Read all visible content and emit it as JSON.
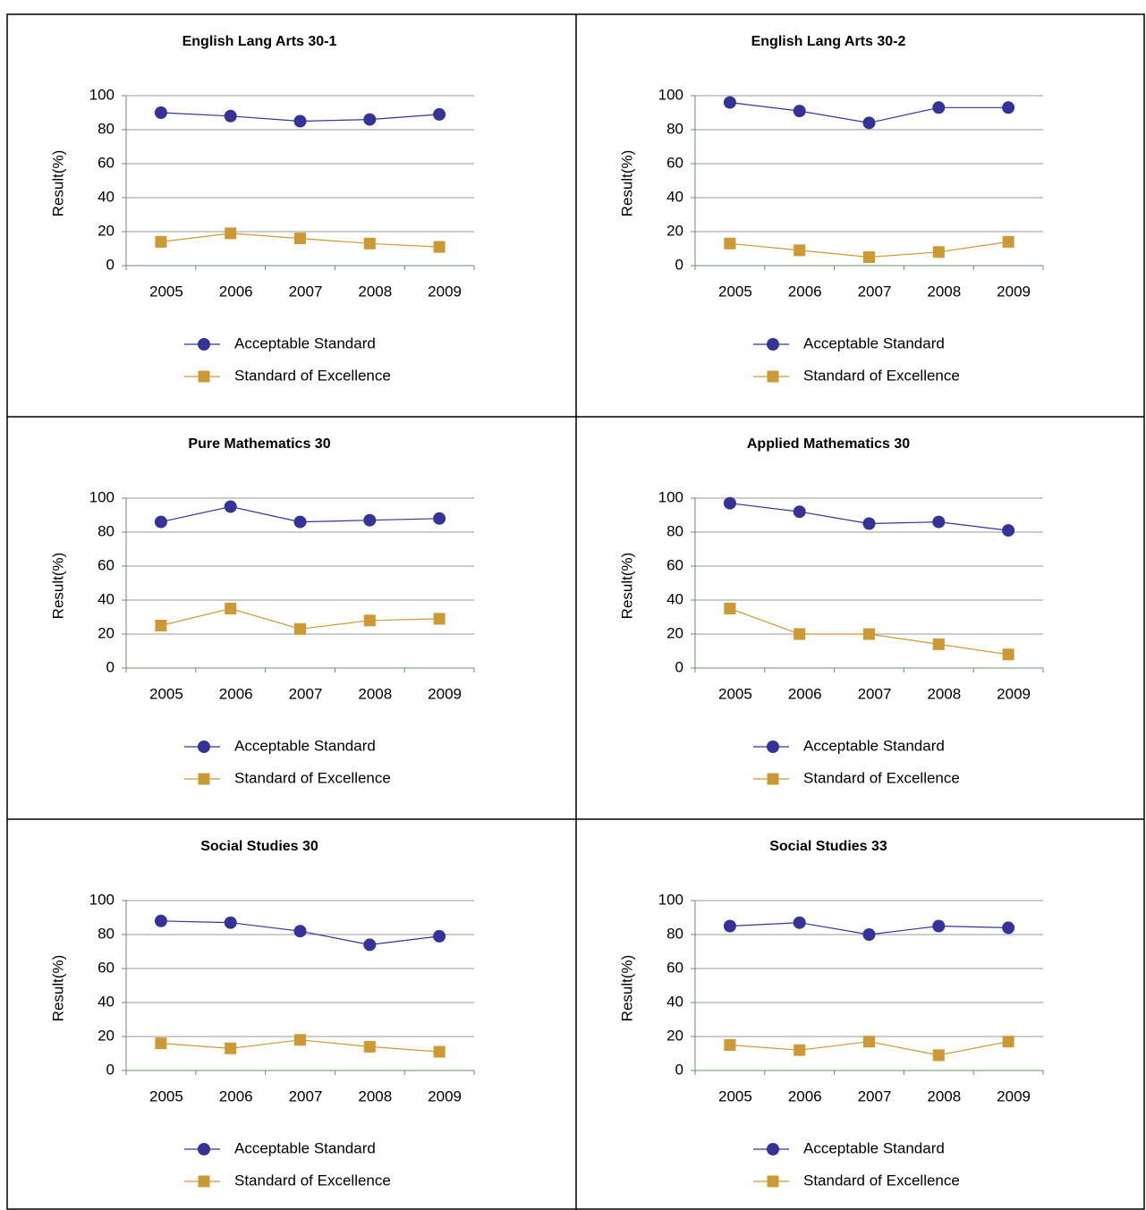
{
  "chart_data": [
    {
      "type": "line",
      "title": "English Lang Arts 30-1",
      "y_label": "Result(%)",
      "categories": [
        "2005",
        "2006",
        "2007",
        "2008",
        "2009"
      ],
      "series": [
        {
          "name": "Acceptable Standard",
          "color": "#333399",
          "marker": "circle",
          "values": [
            90,
            88,
            85,
            86,
            89
          ]
        },
        {
          "name": "Standard of Excellence",
          "color": "#cc9933",
          "marker": "square",
          "values": [
            14,
            19,
            16,
            13,
            11
          ]
        }
      ],
      "ylim": [
        0,
        100
      ],
      "yticks": [
        0,
        20,
        40,
        60,
        80,
        100
      ],
      "grid": true
    },
    {
      "type": "line",
      "title": "English Lang Arts 30-2",
      "y_label": "Result(%)",
      "categories": [
        "2005",
        "2006",
        "2007",
        "2008",
        "2009"
      ],
      "series": [
        {
          "name": "Acceptable Standard",
          "color": "#333399",
          "marker": "circle",
          "values": [
            96,
            91,
            84,
            93,
            93
          ]
        },
        {
          "name": "Standard of Excellence",
          "color": "#cc9933",
          "marker": "square",
          "values": [
            13,
            9,
            5,
            8,
            14
          ]
        }
      ],
      "ylim": [
        0,
        100
      ],
      "yticks": [
        0,
        20,
        40,
        60,
        80,
        100
      ],
      "grid": true
    },
    {
      "type": "line",
      "title": "Pure Mathematics 30",
      "y_label": "Result(%)",
      "categories": [
        "2005",
        "2006",
        "2007",
        "2008",
        "2009"
      ],
      "series": [
        {
          "name": "Acceptable Standard",
          "color": "#333399",
          "marker": "circle",
          "values": [
            86,
            95,
            86,
            87,
            88
          ]
        },
        {
          "name": "Standard of Excellence",
          "color": "#cc9933",
          "marker": "square",
          "values": [
            25,
            35,
            23,
            28,
            29
          ]
        }
      ],
      "ylim": [
        0,
        100
      ],
      "yticks": [
        0,
        20,
        40,
        60,
        80,
        100
      ],
      "grid": true
    },
    {
      "type": "line",
      "title": "Applied Mathematics 30",
      "y_label": "Result(%)",
      "categories": [
        "2005",
        "2006",
        "2007",
        "2008",
        "2009"
      ],
      "series": [
        {
          "name": "Acceptable Standard",
          "color": "#333399",
          "marker": "circle",
          "values": [
            97,
            92,
            85,
            86,
            81
          ]
        },
        {
          "name": "Standard of Excellence",
          "color": "#cc9933",
          "marker": "square",
          "values": [
            35,
            20,
            20,
            14,
            8
          ]
        }
      ],
      "ylim": [
        0,
        100
      ],
      "yticks": [
        0,
        20,
        40,
        60,
        80,
        100
      ],
      "grid": true
    },
    {
      "type": "line",
      "title": "Social Studies 30",
      "y_label": "Result(%)",
      "categories": [
        "2005",
        "2006",
        "2007",
        "2008",
        "2009"
      ],
      "series": [
        {
          "name": "Acceptable Standard",
          "color": "#333399",
          "marker": "circle",
          "values": [
            88,
            87,
            82,
            74,
            79
          ]
        },
        {
          "name": "Standard of Excellence",
          "color": "#cc9933",
          "marker": "square",
          "values": [
            16,
            13,
            18,
            14,
            11
          ]
        }
      ],
      "ylim": [
        0,
        100
      ],
      "yticks": [
        0,
        20,
        40,
        60,
        80,
        100
      ],
      "grid": true
    },
    {
      "type": "line",
      "title": "Social Studies 33",
      "y_label": "Result(%)",
      "categories": [
        "2005",
        "2006",
        "2007",
        "2008",
        "2009"
      ],
      "series": [
        {
          "name": "Acceptable Standard",
          "color": "#333399",
          "marker": "circle",
          "values": [
            85,
            87,
            80,
            85,
            84
          ]
        },
        {
          "name": "Standard of Excellence",
          "color": "#cc9933",
          "marker": "square",
          "values": [
            15,
            12,
            17,
            9,
            17
          ]
        }
      ],
      "ylim": [
        0,
        100
      ],
      "yticks": [
        0,
        20,
        40,
        60,
        80,
        100
      ],
      "grid": true
    }
  ]
}
